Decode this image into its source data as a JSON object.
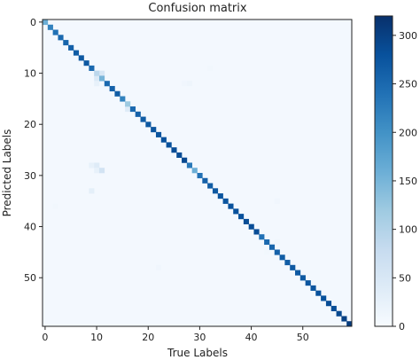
{
  "chart_data": {
    "type": "heatmap",
    "title": "Confusion matrix",
    "xlabel": "True Labels",
    "ylabel": "Predicted Labels",
    "n_classes": 60,
    "x_ticks": [
      0,
      10,
      20,
      30,
      40,
      50
    ],
    "y_ticks": [
      0,
      10,
      20,
      30,
      40,
      50
    ],
    "diagonal": [
      160,
      220,
      240,
      250,
      255,
      260,
      265,
      270,
      270,
      250,
      90,
      150,
      250,
      260,
      265,
      220,
      120,
      250,
      260,
      265,
      270,
      275,
      275,
      280,
      280,
      285,
      285,
      290,
      230,
      160,
      240,
      260,
      265,
      270,
      275,
      275,
      280,
      280,
      280,
      285,
      285,
      285,
      240,
      250,
      255,
      260,
      265,
      265,
      270,
      270,
      270,
      275,
      275,
      280,
      280,
      285,
      285,
      290,
      300,
      305
    ],
    "off_diagonal": [
      {
        "pred": 11,
        "true": 10,
        "value": 45
      },
      {
        "pred": 10,
        "true": 11,
        "value": 50
      },
      {
        "pred": 12,
        "true": 10,
        "value": 25
      },
      {
        "pred": 17,
        "true": 16,
        "value": 40
      },
      {
        "pred": 12,
        "true": 28,
        "value": 15
      },
      {
        "pred": 12,
        "true": 27,
        "value": 12
      },
      {
        "pred": 9,
        "true": 32,
        "value": 10
      },
      {
        "pred": 28,
        "true": 9,
        "value": 25
      },
      {
        "pred": 28,
        "true": 10,
        "value": 40
      },
      {
        "pred": 29,
        "true": 10,
        "value": 25
      },
      {
        "pred": 29,
        "true": 11,
        "value": 60
      },
      {
        "pred": 33,
        "true": 9,
        "value": 30
      },
      {
        "pred": 36,
        "true": 2,
        "value": 10
      },
      {
        "pred": 43,
        "true": 45,
        "value": 12
      },
      {
        "pred": 45,
        "true": 43,
        "value": 10
      },
      {
        "pred": 48,
        "true": 22,
        "value": 12
      },
      {
        "pred": 35,
        "true": 45,
        "value": 12
      }
    ],
    "colorbar": {
      "min": 0,
      "max": 320,
      "ticks": [
        0,
        50,
        100,
        150,
        200,
        250,
        300
      ],
      "colormap": "Blues"
    }
  }
}
